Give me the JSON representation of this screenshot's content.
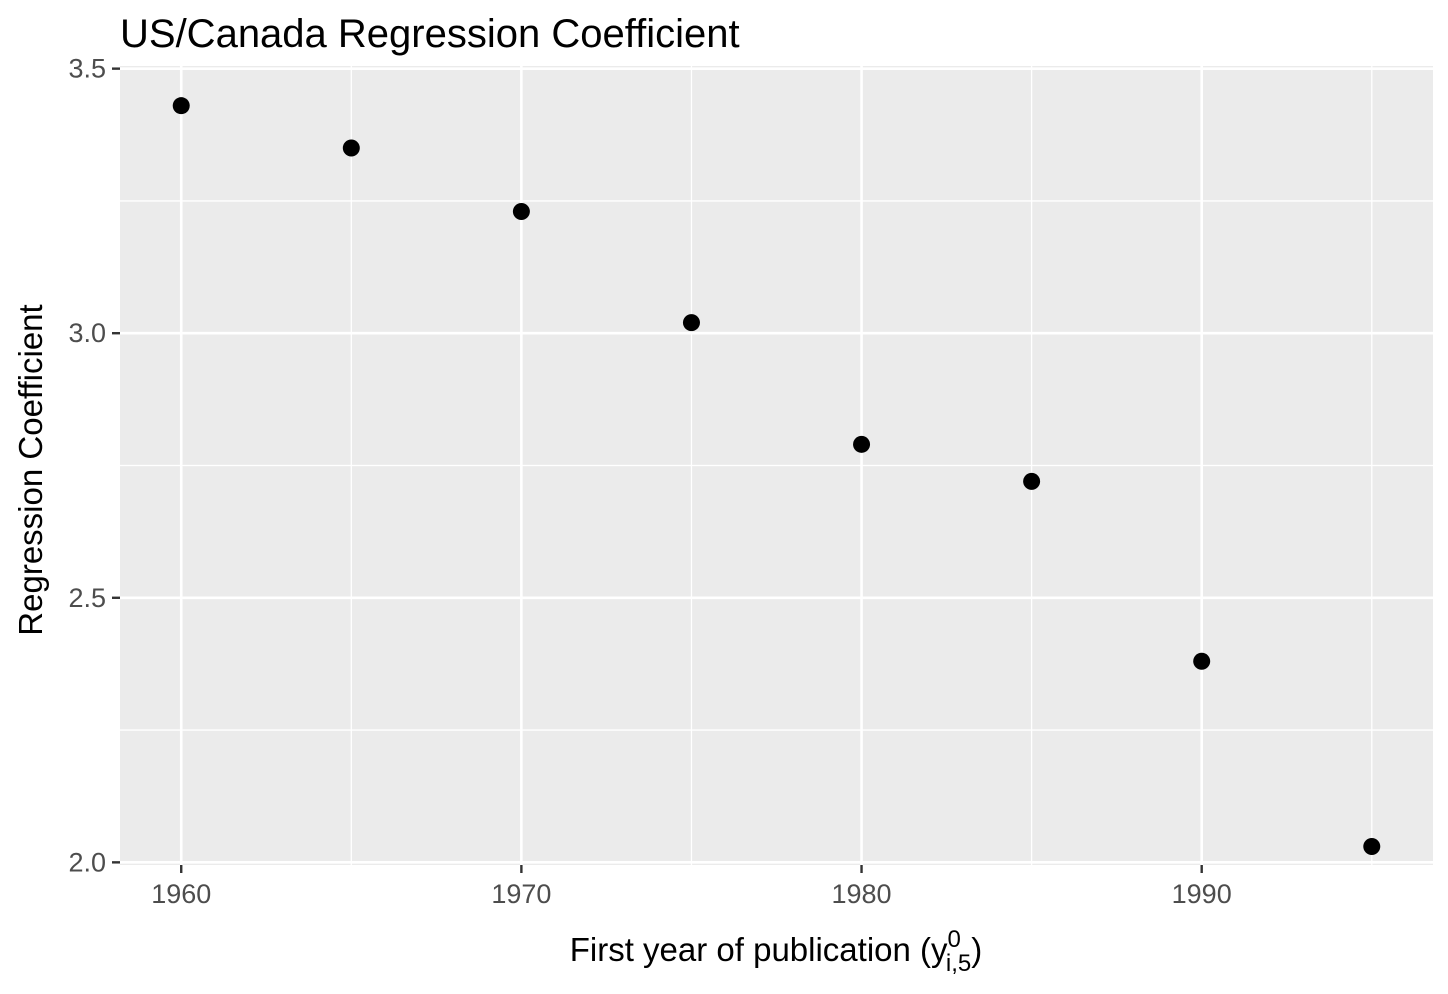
{
  "chart_data": {
    "type": "scatter",
    "title": "US/Canada Regression Coefficient",
    "xlabel": "First year of publication",
    "xlabel_var": {
      "base": "y",
      "superscript": "0",
      "subscript": "i,5"
    },
    "ylabel": "Regression Coefficient",
    "xlim": [
      1958.2,
      1996.8
    ],
    "ylim": [
      1.995,
      3.505
    ],
    "x_ticks": [
      1960,
      1970,
      1980,
      1990
    ],
    "x_tick_labels": [
      "1960",
      "1970",
      "1980",
      "1990"
    ],
    "x_minor_ticks": [
      1965,
      1975,
      1985,
      1995
    ],
    "y_ticks": [
      2.0,
      2.5,
      3.0,
      3.5
    ],
    "y_tick_labels": [
      "2.0",
      "2.5",
      "3.0",
      "3.5"
    ],
    "y_minor_ticks": [
      2.25,
      2.75,
      3.25
    ],
    "grid": true,
    "legend": "none",
    "panel_color": "#ebebeb",
    "grid_color": "#ffffff",
    "point_color": "#000000",
    "points": [
      {
        "x": 1960,
        "y": 3.43
      },
      {
        "x": 1965,
        "y": 3.35
      },
      {
        "x": 1970,
        "y": 3.23
      },
      {
        "x": 1975,
        "y": 3.02
      },
      {
        "x": 1980,
        "y": 2.79
      },
      {
        "x": 1985,
        "y": 2.72
      },
      {
        "x": 1990,
        "y": 2.38
      },
      {
        "x": 1995,
        "y": 2.03
      }
    ]
  }
}
